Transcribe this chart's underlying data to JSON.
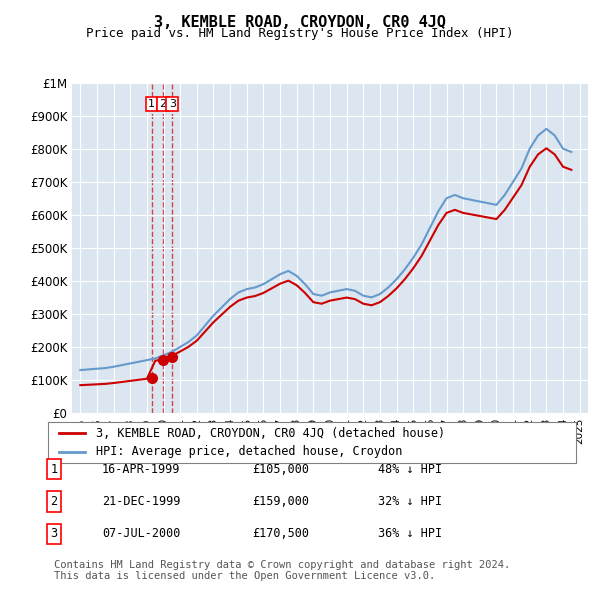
{
  "title": "3, KEMBLE ROAD, CROYDON, CR0 4JQ",
  "subtitle": "Price paid vs. HM Land Registry's House Price Index (HPI)",
  "transactions": [
    {
      "num": 1,
      "date": "16-APR-1999",
      "price": 105000,
      "label": "48% ↓ HPI",
      "x_year": 1999.29
    },
    {
      "num": 2,
      "date": "21-DEC-1999",
      "price": 159000,
      "label": "32% ↓ HPI",
      "x_year": 1999.97
    },
    {
      "num": 3,
      "date": "07-JUL-2000",
      "price": 170500,
      "label": "36% ↓ HPI",
      "x_year": 2000.52
    }
  ],
  "legend_label_red": "3, KEMBLE ROAD, CROYDON, CR0 4JQ (detached house)",
  "legend_label_blue": "HPI: Average price, detached house, Croydon",
  "footer": "Contains HM Land Registry data © Crown copyright and database right 2024.\nThis data is licensed under the Open Government Licence v3.0.",
  "red_color": "#cc0000",
  "blue_color": "#6699cc",
  "background_color": "#dce6f0",
  "ylim": [
    0,
    1000000
  ],
  "xlim_start": 1994.5,
  "xlim_end": 2025.5
}
